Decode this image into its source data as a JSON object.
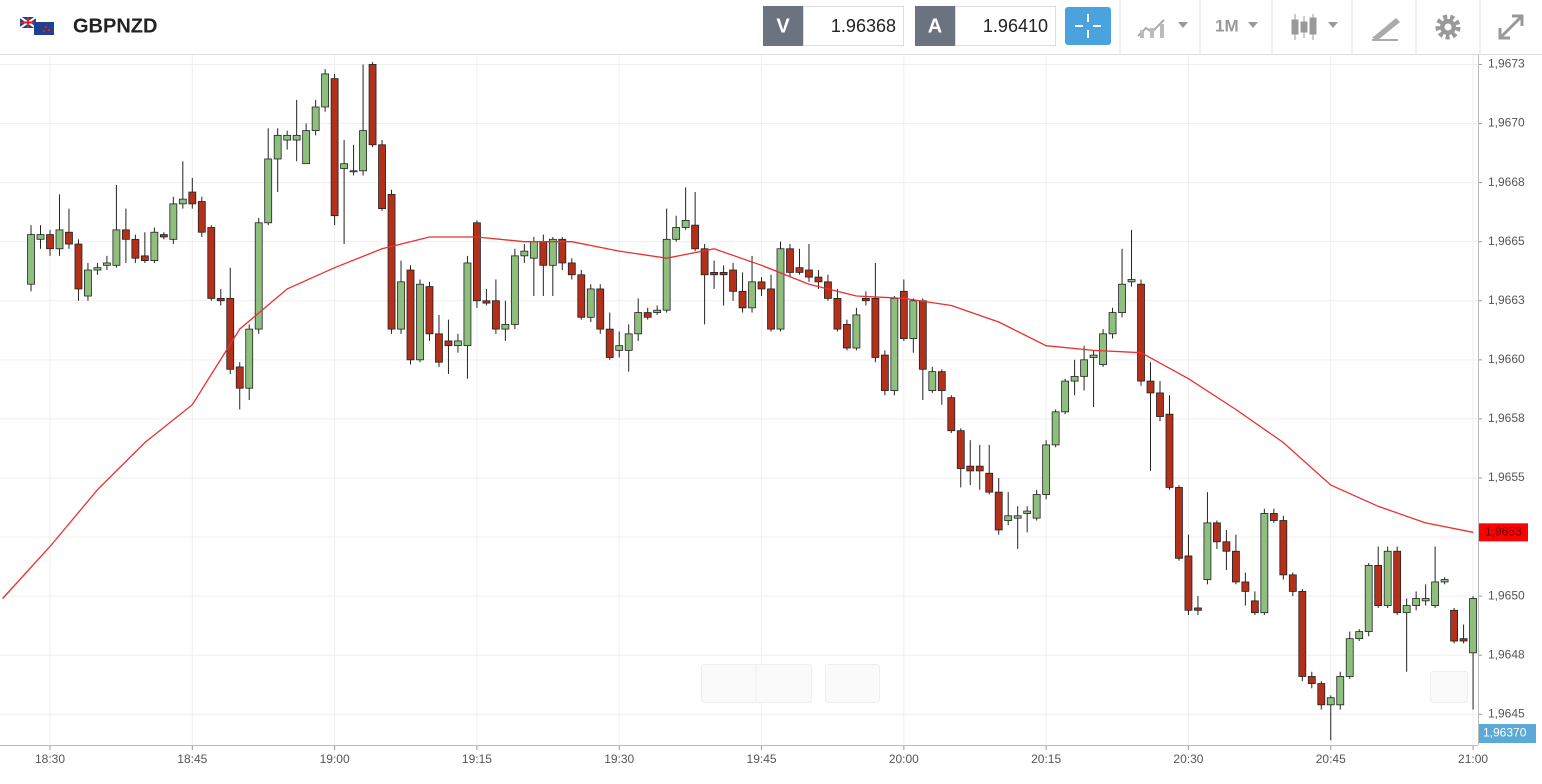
{
  "header": {
    "symbol": "GBPNZD",
    "sell_label": "V",
    "sell_price": "1.96368",
    "buy_label": "A",
    "buy_price": "1.96410",
    "timeframe": "1M"
  },
  "chart_data": {
    "type": "candlestick",
    "up_color": "#8fbf7f",
    "down_color": "#b3301b",
    "grid": true,
    "xlim": [
      1104.73,
      1260.52
    ],
    "ylim": [
      1.96437,
      1.96729
    ],
    "xticks": [
      {
        "value": 1110,
        "label": "18:30"
      },
      {
        "value": 1125,
        "label": "18:45"
      },
      {
        "value": 1140,
        "label": "19:00"
      },
      {
        "value": 1155,
        "label": "19:15"
      },
      {
        "value": 1170,
        "label": "19:30"
      },
      {
        "value": 1185,
        "label": "19:45"
      },
      {
        "value": 1200,
        "label": "20:00"
      },
      {
        "value": 1215,
        "label": "20:15"
      },
      {
        "value": 1230,
        "label": "20:30"
      },
      {
        "value": 1245,
        "label": "20:45"
      },
      {
        "value": 1260,
        "label": "21:00"
      }
    ],
    "yticks": [
      {
        "value": 1.96725,
        "label": "1,9673"
      },
      {
        "value": 1.967,
        "label": "1,9670"
      },
      {
        "value": 1.96675,
        "label": "1,9668"
      },
      {
        "value": 1.9665,
        "label": "1,9665"
      },
      {
        "value": 1.96625,
        "label": "1,9663"
      },
      {
        "value": 1.966,
        "label": "1,9660"
      },
      {
        "value": 1.96575,
        "label": "1,9658"
      },
      {
        "value": 1.9655,
        "label": "1,9655"
      },
      {
        "value": 1.96525,
        "label": "1,9653"
      },
      {
        "value": 1.965,
        "label": "1,9650"
      },
      {
        "value": 1.96475,
        "label": "1,9648"
      },
      {
        "value": 1.9645,
        "label": "1,9645"
      }
    ],
    "price_tag": "1,96370",
    "x": [
      1108,
      1109,
      1110,
      1111,
      1112,
      1113,
      1114,
      1115,
      1116,
      1117,
      1118,
      1119,
      1120,
      1121,
      1122,
      1123,
      1124,
      1125,
      1126,
      1127,
      1128,
      1129,
      1130,
      1131,
      1132,
      1133,
      1134,
      1135,
      1136,
      1137,
      1138,
      1139,
      1140,
      1141,
      1142,
      1143,
      1144,
      1145,
      1146,
      1147,
      1148,
      1149,
      1150,
      1151,
      1152,
      1153,
      1154,
      1155,
      1156,
      1157,
      1158,
      1159,
      1160,
      1161,
      1162,
      1163,
      1164,
      1165,
      1166,
      1167,
      1168,
      1169,
      1170,
      1171,
      1172,
      1173,
      1174,
      1175,
      1176,
      1177,
      1178,
      1179,
      1180,
      1181,
      1182,
      1183,
      1184,
      1185,
      1186,
      1187,
      1188,
      1189,
      1190,
      1191,
      1192,
      1193,
      1194,
      1195,
      1196,
      1197,
      1198,
      1199,
      1200,
      1201,
      1202,
      1203,
      1204,
      1205,
      1206,
      1207,
      1208,
      1209,
      1210,
      1211,
      1212,
      1213,
      1214,
      1215,
      1216,
      1217,
      1218,
      1219,
      1220,
      1221,
      1222,
      1223,
      1224,
      1225,
      1226,
      1227,
      1228,
      1229,
      1230,
      1231,
      1232,
      1233,
      1234,
      1235,
      1236,
      1237,
      1238,
      1239,
      1240,
      1241,
      1242,
      1243,
      1244,
      1245,
      1246,
      1247,
      1248,
      1249,
      1250,
      1251,
      1252,
      1253,
      1254,
      1255,
      1256,
      1257,
      1258,
      1259,
      1260
    ],
    "candles": [
      [
        1.96632,
        1.96657,
        1.96629,
        1.96653
      ],
      [
        1.96651,
        1.96657,
        1.96647,
        1.96653
      ],
      [
        1.96653,
        1.96655,
        1.96644,
        1.96647
      ],
      [
        1.96647,
        1.9667,
        1.96644,
        1.96655
      ],
      [
        1.96654,
        1.96664,
        1.96647,
        1.96649
      ],
      [
        1.96649,
        1.96651,
        1.96625,
        1.9663
      ],
      [
        1.96627,
        1.96641,
        1.96625,
        1.96638
      ],
      [
        1.96638,
        1.96641,
        1.96636,
        1.96639
      ],
      [
        1.9664,
        1.96644,
        1.96638,
        1.96641
      ],
      [
        1.9664,
        1.96674,
        1.96639,
        1.96655
      ],
      [
        1.96655,
        1.96664,
        1.96641,
        1.96651
      ],
      [
        1.96651,
        1.96653,
        1.96641,
        1.96643
      ],
      [
        1.96644,
        1.96654,
        1.96641,
        1.96642
      ],
      [
        1.96642,
        1.96656,
        1.96641,
        1.96654
      ],
      [
        1.96653,
        1.96654,
        1.96651,
        1.96652
      ],
      [
        1.96651,
        1.96669,
        1.96649,
        1.96666
      ],
      [
        1.96666,
        1.96684,
        1.96664,
        1.96668
      ],
      [
        1.96671,
        1.96677,
        1.96664,
        1.96666
      ],
      [
        1.96667,
        1.96669,
        1.96652,
        1.96654
      ],
      [
        1.96656,
        1.96657,
        1.96625,
        1.96626
      ],
      [
        1.96626,
        1.9663,
        1.96623,
        1.96625
      ],
      [
        1.96626,
        1.96639,
        1.96594,
        1.96596
      ],
      [
        1.96597,
        1.96599,
        1.96579,
        1.96588
      ],
      [
        1.96588,
        1.96615,
        1.96583,
        1.96613
      ],
      [
        1.96613,
        1.9666,
        1.96611,
        1.96658
      ],
      [
        1.96658,
        1.96698,
        1.96657,
        1.96685
      ],
      [
        1.96685,
        1.96698,
        1.96671,
        1.96695
      ],
      [
        1.96693,
        1.96697,
        1.96689,
        1.96695
      ],
      [
        1.96693,
        1.9671,
        1.96684,
        1.96695
      ],
      [
        1.96683,
        1.967,
        1.96683,
        1.96697
      ],
      [
        1.96697,
        1.9671,
        1.96695,
        1.96707
      ],
      [
        1.96707,
        1.96723,
        1.96705,
        1.96721
      ],
      [
        1.96719,
        1.96721,
        1.96657,
        1.96661
      ],
      [
        1.96681,
        1.96693,
        1.96649,
        1.96683
      ],
      [
        1.9668,
        1.96691,
        1.96678,
        1.9668
      ],
      [
        1.9668,
        1.96725,
        1.96678,
        1.96697
      ],
      [
        1.96725,
        1.96726,
        1.9669,
        1.96691
      ],
      [
        1.96691,
        1.96693,
        1.96663,
        1.96664
      ],
      [
        1.9667,
        1.96672,
        1.96611,
        1.96613
      ],
      [
        1.96613,
        1.96642,
        1.96611,
        1.96633
      ],
      [
        1.96638,
        1.9664,
        1.96598,
        1.966
      ],
      [
        1.966,
        1.96634,
        1.96599,
        1.96632
      ],
      [
        1.96631,
        1.96633,
        1.96608,
        1.96611
      ],
      [
        1.96611,
        1.96619,
        1.96597,
        1.96599
      ],
      [
        1.96608,
        1.96617,
        1.96594,
        1.96606
      ],
      [
        1.96606,
        1.96611,
        1.96603,
        1.96608
      ],
      [
        1.96606,
        1.96644,
        1.96592,
        1.96641
      ],
      [
        1.96658,
        1.96659,
        1.96622,
        1.96625
      ],
      [
        1.96625,
        1.9663,
        1.96623,
        1.96624
      ],
      [
        1.96625,
        1.96634,
        1.96611,
        1.96613
      ],
      [
        1.96613,
        1.96625,
        1.96608,
        1.96615
      ],
      [
        1.96615,
        1.96647,
        1.96613,
        1.96644
      ],
      [
        1.96644,
        1.96649,
        1.96641,
        1.96646
      ],
      [
        1.96643,
        1.96652,
        1.96627,
        1.9665
      ],
      [
        1.9665,
        1.96653,
        1.96627,
        1.9664
      ],
      [
        1.9664,
        1.96652,
        1.96627,
        1.96651
      ],
      [
        1.96651,
        1.96652,
        1.96638,
        1.96641
      ],
      [
        1.96641,
        1.96643,
        1.96634,
        1.96636
      ],
      [
        1.96636,
        1.96638,
        1.96617,
        1.96618
      ],
      [
        1.96618,
        1.96632,
        1.96616,
        1.9663
      ],
      [
        1.9663,
        1.96632,
        1.96611,
        1.96613
      ],
      [
        1.96613,
        1.9662,
        1.966,
        1.96601
      ],
      [
        1.96604,
        1.96612,
        1.96601,
        1.96606
      ],
      [
        1.96604,
        1.96615,
        1.96595,
        1.96611
      ],
      [
        1.96611,
        1.96626,
        1.96608,
        1.9662
      ],
      [
        1.9662,
        1.96622,
        1.96617,
        1.96618
      ],
      [
        1.9662,
        1.96623,
        1.96619,
        1.96621
      ],
      [
        1.96621,
        1.96664,
        1.9662,
        1.96651
      ],
      [
        1.96651,
        1.96661,
        1.9665,
        1.96656
      ],
      [
        1.96656,
        1.96673,
        1.96655,
        1.96659
      ],
      [
        1.96657,
        1.96671,
        1.96646,
        1.96647
      ],
      [
        1.96647,
        1.96649,
        1.96615,
        1.96636
      ],
      [
        1.96637,
        1.96642,
        1.9663,
        1.96636
      ],
      [
        1.96637,
        1.9664,
        1.96623,
        1.96636
      ],
      [
        1.96638,
        1.96641,
        1.96625,
        1.96629
      ],
      [
        1.96629,
        1.96637,
        1.9662,
        1.96622
      ],
      [
        1.96622,
        1.96644,
        1.9662,
        1.96633
      ],
      [
        1.96633,
        1.96635,
        1.96627,
        1.9663
      ],
      [
        1.9663,
        1.96636,
        1.96612,
        1.96613
      ],
      [
        1.96613,
        1.9665,
        1.96612,
        1.96647
      ],
      [
        1.96647,
        1.96649,
        1.96635,
        1.96637
      ],
      [
        1.96639,
        1.96647,
        1.96636,
        1.96637
      ],
      [
        1.96638,
        1.96649,
        1.96633,
        1.96635
      ],
      [
        1.96635,
        1.96638,
        1.9663,
        1.96633
      ],
      [
        1.96633,
        1.96636,
        1.96625,
        1.96626
      ],
      [
        1.96626,
        1.9663,
        1.96612,
        1.96613
      ],
      [
        1.96615,
        1.96617,
        1.96604,
        1.96605
      ],
      [
        1.96605,
        1.96622,
        1.96604,
        1.96619
      ],
      [
        1.96626,
        1.96629,
        1.96623,
        1.96625
      ],
      [
        1.96626,
        1.96641,
        1.96599,
        1.96601
      ],
      [
        1.96602,
        1.96604,
        1.96585,
        1.96587
      ],
      [
        1.96587,
        1.96627,
        1.96585,
        1.96626
      ],
      [
        1.96629,
        1.96634,
        1.96608,
        1.96609
      ],
      [
        1.96609,
        1.96626,
        1.96603,
        1.96625
      ],
      [
        1.96625,
        1.96626,
        1.96583,
        1.96596
      ],
      [
        1.96587,
        1.96597,
        1.96586,
        1.96595
      ],
      [
        1.96595,
        1.96596,
        1.96581,
        1.96587
      ],
      [
        1.96584,
        1.96585,
        1.96569,
        1.9657
      ],
      [
        1.9657,
        1.96571,
        1.96546,
        1.96554
      ],
      [
        1.96555,
        1.96566,
        1.96547,
        1.96553
      ],
      [
        1.96555,
        1.96564,
        1.96545,
        1.96553
      ],
      [
        1.96552,
        1.96564,
        1.96543,
        1.96544
      ],
      [
        1.96544,
        1.9655,
        1.96526,
        1.96528
      ],
      [
        1.96532,
        1.96544,
        1.9653,
        1.96534
      ],
      [
        1.96533,
        1.96538,
        1.9652,
        1.96534
      ],
      [
        1.96535,
        1.96538,
        1.96527,
        1.96536
      ],
      [
        1.96533,
        1.96545,
        1.96532,
        1.96543
      ],
      [
        1.96543,
        1.96566,
        1.96541,
        1.96564
      ],
      [
        1.96564,
        1.96579,
        1.96563,
        1.96578
      ],
      [
        1.96578,
        1.96592,
        1.96577,
        1.96591
      ],
      [
        1.96591,
        1.966,
        1.96585,
        1.96593
      ],
      [
        1.96593,
        1.96606,
        1.96587,
        1.966
      ],
      [
        1.96601,
        1.96604,
        1.9658,
        1.96602
      ],
      [
        1.96598,
        1.96613,
        1.96597,
        1.96611
      ],
      [
        1.96611,
        1.96622,
        1.96609,
        1.9662
      ],
      [
        1.9662,
        1.96647,
        1.96618,
        1.96632
      ],
      [
        1.96633,
        1.96655,
        1.96631,
        1.96634
      ],
      [
        1.96632,
        1.96634,
        1.96589,
        1.96591
      ],
      [
        1.96591,
        1.96599,
        1.96553,
        1.96586
      ],
      [
        1.96586,
        1.96591,
        1.96574,
        1.96576
      ],
      [
        1.96577,
        1.96585,
        1.96545,
        1.96546
      ],
      [
        1.96546,
        1.96547,
        1.96515,
        1.96516
      ],
      [
        1.96517,
        1.96526,
        1.96492,
        1.96494
      ],
      [
        1.96495,
        1.965,
        1.96492,
        1.96494
      ],
      [
        1.96507,
        1.96544,
        1.96505,
        1.96531
      ],
      [
        1.96531,
        1.96532,
        1.9652,
        1.96523
      ],
      [
        1.96523,
        1.96528,
        1.96511,
        1.96519
      ],
      [
        1.96519,
        1.96526,
        1.96505,
        1.96506
      ],
      [
        1.96506,
        1.9651,
        1.96496,
        1.96502
      ],
      [
        1.96498,
        1.96502,
        1.96492,
        1.96493
      ],
      [
        1.96493,
        1.96537,
        1.96492,
        1.96535
      ],
      [
        1.96535,
        1.96537,
        1.96531,
        1.96532
      ],
      [
        1.96532,
        1.96534,
        1.96507,
        1.96509
      ],
      [
        1.96509,
        1.9651,
        1.965,
        1.96502
      ],
      [
        1.96502,
        1.96503,
        1.96464,
        1.96466
      ],
      [
        1.96466,
        1.96468,
        1.96461,
        1.96463
      ],
      [
        1.96463,
        1.96464,
        1.96452,
        1.96454
      ],
      [
        1.96454,
        1.96458,
        1.96439,
        1.96457
      ],
      [
        1.96454,
        1.96468,
        1.96452,
        1.96466
      ],
      [
        1.96466,
        1.96485,
        1.96465,
        1.96482
      ],
      [
        1.96482,
        1.96486,
        1.96481,
        1.96485
      ],
      [
        1.96485,
        1.96514,
        1.96483,
        1.96513
      ],
      [
        1.96513,
        1.96521,
        1.96495,
        1.96496
      ],
      [
        1.96496,
        1.96521,
        1.96495,
        1.96519
      ],
      [
        1.96519,
        1.96521,
        1.96492,
        1.96493
      ],
      [
        1.96493,
        1.96499,
        1.96468,
        1.96496
      ],
      [
        1.96496,
        1.96502,
        1.96494,
        1.96499
      ],
      [
        1.96498,
        1.96505,
        1.96496,
        1.96499
      ],
      [
        1.96496,
        1.96521,
        1.96495,
        1.96506
      ],
      [
        1.96506,
        1.96508,
        1.96505,
        1.96507
      ],
      [
        1.96494,
        1.96495,
        1.9648,
        1.96481
      ],
      [
        1.96482,
        1.96488,
        1.9648,
        1.96481
      ],
      [
        1.96476,
        1.965,
        1.96452,
        1.96499
      ]
    ],
    "ma": {
      "color": "#e8312f",
      "label": "1,9653",
      "x": [
        1105,
        1110,
        1115,
        1120,
        1125,
        1130,
        1135,
        1140,
        1145,
        1150,
        1155,
        1160,
        1165,
        1170,
        1175,
        1180,
        1185,
        1190,
        1195,
        1200,
        1205,
        1210,
        1215,
        1220,
        1225,
        1230,
        1235,
        1240,
        1245,
        1250,
        1255,
        1260
      ],
      "values": [
        1.96499,
        1.96521,
        1.96545,
        1.96565,
        1.96581,
        1.96613,
        1.9663,
        1.96639,
        1.96647,
        1.96652,
        1.96652,
        1.9665,
        1.9665,
        1.96646,
        1.96643,
        1.96647,
        1.9664,
        1.96632,
        1.96627,
        1.96626,
        1.96623,
        1.96616,
        1.96606,
        1.96604,
        1.96603,
        1.96592,
        1.96579,
        1.96565,
        1.96547,
        1.96538,
        1.96531,
        1.96527
      ]
    }
  }
}
